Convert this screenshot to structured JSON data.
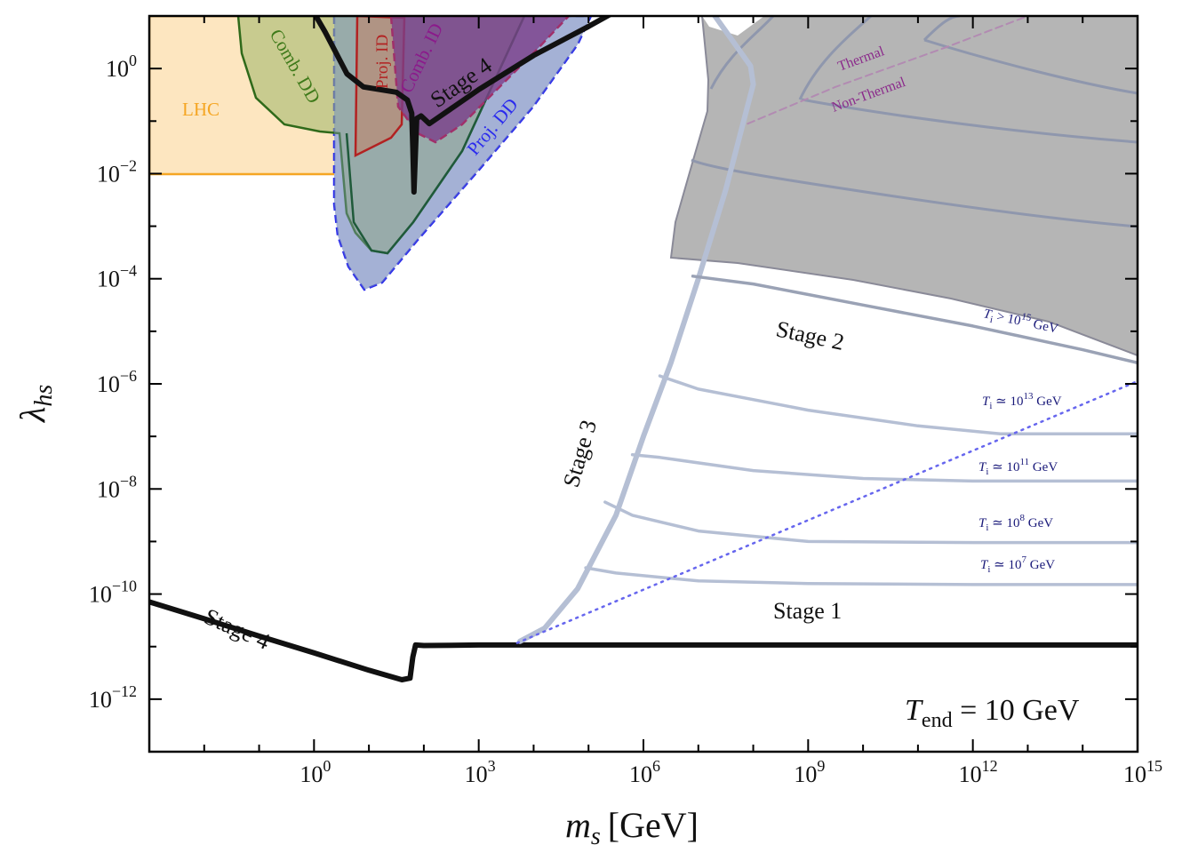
{
  "chart_data": {
    "type": "line",
    "title": "",
    "xlabel": {
      "main": "m",
      "sub": "s",
      "unit": "[GeV]"
    },
    "ylabel": {
      "main": "λ",
      "sub": "hs"
    },
    "xscale": "log",
    "yscale": "log",
    "xlim_log10": [
      -3,
      15
    ],
    "ylim_log10": [
      -13,
      1
    ],
    "x_ticks": [
      {
        "exp": 0,
        "base": "10",
        "sup": "0"
      },
      {
        "exp": 3,
        "base": "10",
        "sup": "3"
      },
      {
        "exp": 6,
        "base": "10",
        "sup": "6"
      },
      {
        "exp": 9,
        "base": "10",
        "sup": "9"
      },
      {
        "exp": 12,
        "base": "10",
        "sup": "12"
      },
      {
        "exp": 15,
        "base": "10",
        "sup": "15"
      }
    ],
    "y_ticks": [
      {
        "exp": 0,
        "base": "10",
        "sup": "0"
      },
      {
        "exp": -2,
        "base": "10",
        "sup": "−2"
      },
      {
        "exp": -4,
        "base": "10",
        "sup": "−4"
      },
      {
        "exp": -6,
        "base": "10",
        "sup": "−6"
      },
      {
        "exp": -8,
        "base": "10",
        "sup": "−8"
      },
      {
        "exp": -10,
        "base": "10",
        "sup": "−10"
      },
      {
        "exp": -12,
        "base": "10",
        "sup": "−12"
      }
    ],
    "regions": [
      {
        "name": "LHC",
        "color": "#f5a623",
        "fill": "#fde6c0"
      },
      {
        "name": "Comb. DD",
        "color": "#3f7a1a",
        "fill": "#9db566"
      },
      {
        "name": "Proj. DD",
        "color": "#2a2aee",
        "fill": "#c5c8f5"
      },
      {
        "name": "Proj. ID",
        "color": "#b22222"
      },
      {
        "name": "Comb. ID",
        "color": "#8b1a8b",
        "fill": "#7a3f8a"
      },
      {
        "name": "Excluded (grey)",
        "fill": "#b5b5b5"
      }
    ],
    "series": [
      {
        "name": "Stage 4 (lower)",
        "color": "#111111",
        "points_log10": [
          [
            -3,
            -10.15
          ],
          [
            -2,
            -10.47
          ],
          [
            -1,
            -10.8
          ],
          [
            0,
            -11.12
          ],
          [
            1,
            -11.45
          ],
          [
            1.6,
            -11.63
          ],
          [
            1.75,
            -11.6
          ],
          [
            1.8,
            -11.2
          ],
          [
            1.85,
            -10.97
          ],
          [
            2,
            -10.98
          ],
          [
            3,
            -10.97
          ],
          [
            6,
            -10.97
          ],
          [
            9,
            -10.97
          ],
          [
            12,
            -10.97
          ],
          [
            15,
            -10.97
          ]
        ]
      },
      {
        "name": "Stage 4 (upper)",
        "color": "#111111",
        "points_log10": [
          [
            -0.05,
            1.15
          ],
          [
            0.2,
            0.7
          ],
          [
            0.6,
            -0.1
          ],
          [
            0.9,
            -0.35
          ],
          [
            1.2,
            -0.4
          ],
          [
            1.5,
            -0.45
          ],
          [
            1.7,
            -0.6
          ],
          [
            1.78,
            -0.85
          ],
          [
            1.8,
            -1.5
          ],
          [
            1.82,
            -2.35
          ],
          [
            1.87,
            -0.95
          ],
          [
            1.95,
            -0.9
          ],
          [
            2.1,
            -1.05
          ],
          [
            3,
            -0.4
          ],
          [
            4,
            0.25
          ],
          [
            5,
            0.8
          ],
          [
            5.6,
            1.15
          ]
        ]
      },
      {
        "name": "Stage 3",
        "color": "#b5bfd4",
        "points_log10": [
          [
            3.75,
            -10.9
          ],
          [
            4.2,
            -10.65
          ],
          [
            4.8,
            -9.9
          ],
          [
            5.5,
            -8.5
          ],
          [
            6,
            -7
          ],
          [
            6.5,
            -5.6
          ],
          [
            7,
            -4
          ],
          [
            7.5,
            -2.3
          ],
          [
            7.9,
            -0.7
          ],
          [
            8,
            -0.3
          ],
          [
            7.95,
            0.05
          ],
          [
            7.2,
            1.15
          ]
        ]
      },
      {
        "name": "Ti ≃ 10^7 GeV",
        "color": "#b5bfd4",
        "points_log10": [
          [
            4.95,
            -9.5
          ],
          [
            5.5,
            -9.6
          ],
          [
            7,
            -9.75
          ],
          [
            9,
            -9.8
          ],
          [
            12,
            -9.82
          ],
          [
            15,
            -9.82
          ]
        ]
      },
      {
        "name": "Ti ≃ 10^8 GeV",
        "color": "#b5bfd4",
        "points_log10": [
          [
            5.3,
            -8.25
          ],
          [
            5.8,
            -8.5
          ],
          [
            7,
            -8.8
          ],
          [
            9,
            -9.0
          ],
          [
            12,
            -9.02
          ],
          [
            15,
            -9.02
          ]
        ]
      },
      {
        "name": "Ti ≃ 10^11 GeV",
        "color": "#b5bfd4",
        "points_log10": [
          [
            5.8,
            -7.35
          ],
          [
            6.3,
            -7.4
          ],
          [
            8,
            -7.65
          ],
          [
            10,
            -7.8
          ],
          [
            12,
            -7.85
          ],
          [
            15,
            -7.85
          ]
        ]
      },
      {
        "name": "Ti ≃ 10^13 GeV",
        "color": "#b5bfd4",
        "points_log10": [
          [
            6.3,
            -5.85
          ],
          [
            7,
            -6.1
          ],
          [
            9,
            -6.5
          ],
          [
            11,
            -6.8
          ],
          [
            12.5,
            -6.95
          ],
          [
            15,
            -6.95
          ]
        ]
      },
      {
        "name": "Ti > 10^15 GeV",
        "color": "#9aa2b5",
        "points_log10": [
          [
            6.9,
            -3.95
          ],
          [
            8,
            -4.1
          ],
          [
            10,
            -4.5
          ],
          [
            12,
            -4.9
          ],
          [
            14,
            -5.35
          ],
          [
            15,
            -5.6
          ]
        ]
      },
      {
        "name": "Dotted line",
        "color": "#6666ee",
        "points_log10": [
          [
            3.7,
            -10.93
          ],
          [
            15,
            -5.95
          ]
        ]
      },
      {
        "name": "Thermal / Non-Thermal boundary",
        "color": "#b28bb2",
        "points_log10": [
          [
            7.9,
            -1.05
          ],
          [
            9.5,
            -0.35
          ],
          [
            11.5,
            0.4
          ],
          [
            13,
            1.0
          ]
        ]
      }
    ],
    "annotations": {
      "lhc": "LHC",
      "comb_dd": "Comb. DD",
      "proj_id": "Proj. ID",
      "comb_id": "Comb. ID",
      "stage4_upper": "Stage 4",
      "proj_dd": "Proj. DD",
      "thermal": "Thermal",
      "non_thermal": "Non-Thermal",
      "stage2": "Stage 2",
      "stage3": "Stage 3",
      "stage1": "Stage 1",
      "stage4_lower": "Stage 4",
      "tend": {
        "T": "T",
        "sub": "end",
        "rest": " = 10 GeV"
      },
      "ti_labels": [
        {
          "T": "T",
          "sub": "i",
          "rel": " > 10",
          "sup": "15",
          "unit": " GeV"
        },
        {
          "T": "T",
          "sub": "i",
          "rel": " ≃ 10",
          "sup": "13",
          "unit": " GeV"
        },
        {
          "T": "T",
          "sub": "i",
          "rel": " ≃ 10",
          "sup": "11",
          "unit": " GeV"
        },
        {
          "T": "T",
          "sub": "i",
          "rel": " ≃ 10",
          "sup": "8",
          "unit": " GeV"
        },
        {
          "T": "T",
          "sub": "i",
          "rel": " ≃ 10",
          "sup": "7",
          "unit": " GeV"
        }
      ]
    }
  }
}
